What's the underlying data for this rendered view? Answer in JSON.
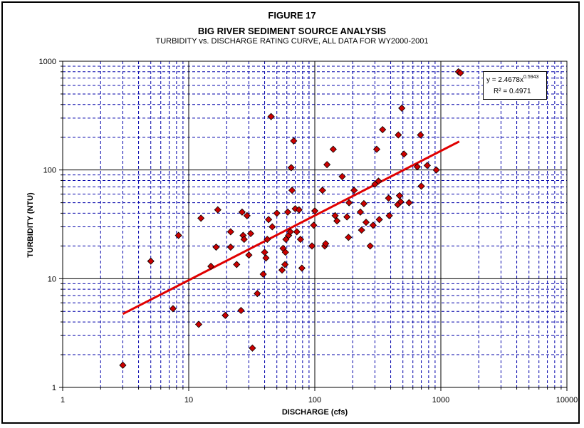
{
  "title": "FIGURE 17",
  "subtitle": "BIG RIVER SEDIMENT SOURCE ANALYSIS",
  "subtitle2": "TURBIDITY vs. DISCHARGE RATING CURVE, ALL DATA FOR WY2000-2001",
  "equation": {
    "prefix": "y = 2.4678x",
    "exponent": "0.5943",
    "r2": "R² = 0.4971"
  },
  "colors": {
    "points": "#cc0000",
    "trend": "#e00000",
    "grid": "#0000aa",
    "major_grid": "#000000"
  },
  "chart_data": {
    "type": "scatter",
    "xlabel": "DISCHARGE (cfs)",
    "ylabel": "TURBIDITY (NTU)",
    "xscale": "log",
    "yscale": "log",
    "xlim": [
      1,
      10000
    ],
    "ylim": [
      1,
      1000
    ],
    "x_ticks": [
      "1",
      "10",
      "100",
      "1000",
      "10000"
    ],
    "y_ticks": [
      "1",
      "10",
      "100",
      "1000"
    ],
    "grid": true,
    "trendline": {
      "type": "power",
      "a": 2.4678,
      "b": 0.5943,
      "x_range": [
        3,
        1400
      ]
    },
    "points": [
      [
        3.0,
        1.6
      ],
      [
        5.0,
        14.5
      ],
      [
        7.5,
        5.3
      ],
      [
        8.3,
        25
      ],
      [
        12,
        3.8
      ],
      [
        12.5,
        36
      ],
      [
        15,
        13
      ],
      [
        16.5,
        19.5
      ],
      [
        17,
        43
      ],
      [
        19.5,
        4.6
      ],
      [
        21.5,
        27
      ],
      [
        21.5,
        19.5
      ],
      [
        24,
        13.5
      ],
      [
        26,
        5.1
      ],
      [
        26.5,
        41
      ],
      [
        27,
        25
      ],
      [
        27.5,
        23
      ],
      [
        29,
        38
      ],
      [
        30,
        16.5
      ],
      [
        31,
        26
      ],
      [
        32,
        2.3
      ],
      [
        35,
        7.3
      ],
      [
        39,
        11
      ],
      [
        40,
        17.5
      ],
      [
        41,
        15.5
      ],
      [
        42,
        23
      ],
      [
        43,
        35
      ],
      [
        45,
        310
      ],
      [
        46,
        30
      ],
      [
        50,
        40
      ],
      [
        55,
        12
      ],
      [
        56,
        19
      ],
      [
        58,
        13.5
      ],
      [
        58.5,
        17.5
      ],
      [
        59,
        23
      ],
      [
        61,
        41
      ],
      [
        62,
        25
      ],
      [
        64,
        27
      ],
      [
        65,
        105
      ],
      [
        66,
        65
      ],
      [
        68,
        185
      ],
      [
        70,
        44
      ],
      [
        72,
        27
      ],
      [
        75,
        43
      ],
      [
        77,
        23
      ],
      [
        79,
        12.5
      ],
      [
        95,
        20
      ],
      [
        98,
        31
      ],
      [
        100,
        42
      ],
      [
        115,
        65
      ],
      [
        120,
        20
      ],
      [
        122,
        21
      ],
      [
        125,
        112
      ],
      [
        140,
        155
      ],
      [
        145,
        38
      ],
      [
        150,
        34
      ],
      [
        165,
        87
      ],
      [
        180,
        37
      ],
      [
        185,
        24
      ],
      [
        187,
        50
      ],
      [
        205,
        65
      ],
      [
        230,
        41
      ],
      [
        235,
        28
      ],
      [
        245,
        49
      ],
      [
        255,
        33
      ],
      [
        275,
        20
      ],
      [
        290,
        31
      ],
      [
        300,
        74
      ],
      [
        310,
        155
      ],
      [
        320,
        79
      ],
      [
        325,
        35
      ],
      [
        345,
        235
      ],
      [
        385,
        55
      ],
      [
        390,
        38
      ],
      [
        455,
        48
      ],
      [
        460,
        210
      ],
      [
        470,
        58
      ],
      [
        480,
        51
      ],
      [
        490,
        370
      ],
      [
        510,
        140
      ],
      [
        560,
        50
      ],
      [
        650,
        107
      ],
      [
        690,
        210
      ],
      [
        700,
        71
      ],
      [
        780,
        110
      ],
      [
        920,
        100
      ],
      [
        1380,
        800
      ],
      [
        1430,
        780
      ]
    ]
  }
}
